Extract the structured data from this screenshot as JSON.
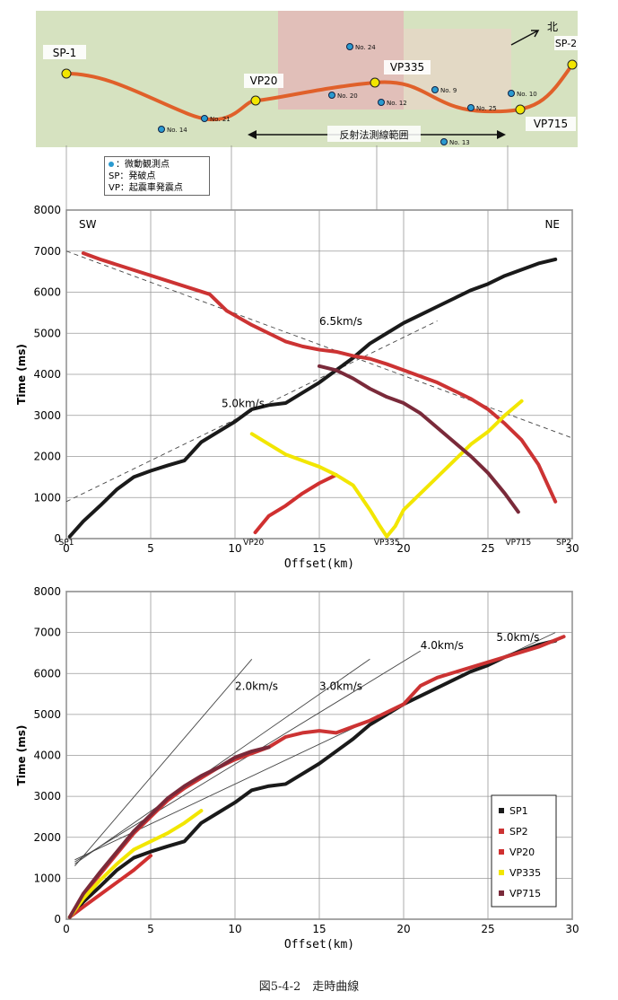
{
  "map": {
    "stations": {
      "sp1": "SP-1",
      "sp2": "SP-2",
      "vp20": "VP20",
      "vp335": "VP335",
      "vp715": "VP715"
    },
    "north_label": "北",
    "range_label": "反射法測線範囲",
    "obs_points": [
      "No. 24",
      "No. 9",
      "No. 10",
      "No. 20",
      "No. 12",
      "No. 25",
      "No. 21",
      "No. 14",
      "No. 13"
    ],
    "legend": {
      "microtremor": "：微動観測点",
      "shot": "SP：発破点",
      "vibro": "VP：起震車発震点"
    },
    "colors": {
      "route": "#e0602a",
      "station": "#f2e600",
      "obs": "#2a9ad0",
      "terrain": "#c9d8b0",
      "urban": "#d89aa0"
    }
  },
  "chart_data": [
    {
      "type": "line",
      "xlabel": "Offset(km)",
      "ylabel": "Time (ms)",
      "xlim": [
        0,
        30
      ],
      "ylim": [
        0,
        8000
      ],
      "xticks": [
        0,
        5,
        10,
        15,
        20,
        25,
        30
      ],
      "yticks": [
        0,
        1000,
        2000,
        3000,
        4000,
        5000,
        6000,
        7000,
        8000
      ],
      "grid": true,
      "corner_labels": {
        "left": "SW",
        "right": "NE"
      },
      "source_labels": [
        {
          "text": "SP1",
          "x": 0
        },
        {
          "text": "VP20",
          "x": 11.1
        },
        {
          "text": "VP335",
          "x": 19.0
        },
        {
          "text": "VP715",
          "x": 26.8
        },
        {
          "text": "SP2",
          "x": 29.5
        }
      ],
      "velocity_labels": [
        {
          "text": "6.5km/s",
          "x": 15,
          "y": 5200
        },
        {
          "text": "5.0km/s",
          "x": 9.2,
          "y": 3200
        }
      ],
      "ref_lines": [
        {
          "points": [
            [
              0,
              7000
            ],
            [
              30,
              2450
            ]
          ]
        },
        {
          "points": [
            [
              0,
              900
            ],
            [
              22,
              5300
            ]
          ]
        }
      ],
      "series": [
        {
          "name": "SP1",
          "color": "#1a1a1a",
          "points": [
            [
              0.2,
              50
            ],
            [
              1,
              420
            ],
            [
              2,
              800
            ],
            [
              3,
              1200
            ],
            [
              4,
              1500
            ],
            [
              5,
              1650
            ],
            [
              6,
              1780
            ],
            [
              7,
              1900
            ],
            [
              8,
              2350
            ],
            [
              9,
              2600
            ],
            [
              10,
              2850
            ],
            [
              11,
              3150
            ],
            [
              12,
              3250
            ],
            [
              13,
              3300
            ],
            [
              14,
              3550
            ],
            [
              15,
              3800
            ],
            [
              16,
              4100
            ],
            [
              17,
              4400
            ],
            [
              18,
              4750
            ],
            [
              19,
              5000
            ],
            [
              20,
              5250
            ],
            [
              21,
              5450
            ],
            [
              22,
              5650
            ],
            [
              23,
              5850
            ],
            [
              24,
              6050
            ],
            [
              25,
              6200
            ],
            [
              26,
              6400
            ],
            [
              27,
              6550
            ],
            [
              28,
              6700
            ],
            [
              29,
              6800
            ]
          ]
        },
        {
          "name": "SP2",
          "color": "#cc3333",
          "points": [
            [
              1,
              6950
            ],
            [
              2,
              6800
            ],
            [
              8.5,
              5950
            ],
            [
              9.5,
              5550
            ],
            [
              11,
              5200
            ],
            [
              12,
              5000
            ],
            [
              13,
              4800
            ],
            [
              14,
              4680
            ],
            [
              15,
              4600
            ],
            [
              16,
              4550
            ],
            [
              17,
              4450
            ],
            [
              18,
              4380
            ],
            [
              19,
              4250
            ],
            [
              20,
              4100
            ],
            [
              21,
              3950
            ],
            [
              22,
              3800
            ],
            [
              23,
              3600
            ],
            [
              24,
              3400
            ],
            [
              25,
              3150
            ],
            [
              26,
              2800
            ],
            [
              27,
              2400
            ],
            [
              28,
              1800
            ],
            [
              29,
              900
            ]
          ]
        },
        {
          "name": "VP20",
          "color": "#d03030",
          "points": [
            [
              11.2,
              150
            ],
            [
              11.5,
              300
            ],
            [
              12,
              550
            ],
            [
              13,
              800
            ],
            [
              14,
              1100
            ],
            [
              15,
              1350
            ],
            [
              16,
              1550
            ]
          ]
        },
        {
          "name": "VP335",
          "color": "#f2e600",
          "points": [
            [
              11,
              2550
            ],
            [
              12,
              2300
            ],
            [
              13,
              2050
            ],
            [
              14,
              1900
            ],
            [
              15,
              1750
            ],
            [
              16,
              1550
            ],
            [
              17,
              1300
            ],
            [
              18,
              700
            ],
            [
              18.6,
              300
            ],
            [
              19,
              50
            ],
            [
              19.5,
              300
            ],
            [
              20,
              700
            ],
            [
              21,
              1100
            ],
            [
              22,
              1500
            ],
            [
              23,
              1900
            ],
            [
              24,
              2300
            ],
            [
              25,
              2600
            ],
            [
              26,
              3000
            ],
            [
              27,
              3350
            ]
          ]
        },
        {
          "name": "VP715",
          "color": "#7a2a3a",
          "points": [
            [
              15,
              4200
            ],
            [
              16,
              4100
            ],
            [
              17,
              3900
            ],
            [
              18,
              3650
            ],
            [
              19,
              3450
            ],
            [
              20,
              3300
            ],
            [
              21,
              3050
            ],
            [
              22,
              2700
            ],
            [
              23,
              2350
            ],
            [
              24,
              2000
            ],
            [
              25,
              1600
            ],
            [
              26,
              1100
            ],
            [
              26.8,
              650
            ]
          ]
        }
      ]
    },
    {
      "type": "line",
      "xlabel": "Offset(km)",
      "ylabel": "Time (ms)",
      "xlim": [
        0,
        30
      ],
      "ylim": [
        0,
        8000
      ],
      "xticks": [
        0,
        5,
        10,
        15,
        20,
        25,
        30
      ],
      "yticks": [
        0,
        1000,
        2000,
        3000,
        4000,
        5000,
        6000,
        7000,
        8000
      ],
      "grid": true,
      "legend_position": "lower-right",
      "velocity_labels": [
        {
          "text": "2.0km/s",
          "x": 10,
          "y": 5600
        },
        {
          "text": "3.0km/s",
          "x": 15,
          "y": 5600
        },
        {
          "text": "4.0km/s",
          "x": 21,
          "y": 6600
        },
        {
          "text": "5.0km/s",
          "x": 25.5,
          "y": 6800
        }
      ],
      "ref_lines": [
        {
          "points": [
            [
              0.5,
              1300
            ],
            [
              11,
              6350
            ]
          ]
        },
        {
          "points": [
            [
              0.5,
              1350
            ],
            [
              18,
              6350
            ]
          ]
        },
        {
          "points": [
            [
              0.5,
              1400
            ],
            [
              21,
              6550
            ]
          ]
        },
        {
          "points": [
            [
              0.5,
              1450
            ],
            [
              29,
              7000
            ]
          ]
        }
      ],
      "series": [
        {
          "name": "SP1",
          "color": "#1a1a1a",
          "points": [
            [
              0.2,
              50
            ],
            [
              1,
              420
            ],
            [
              2,
              800
            ],
            [
              3,
              1200
            ],
            [
              4,
              1500
            ],
            [
              5,
              1650
            ],
            [
              6,
              1780
            ],
            [
              7,
              1900
            ],
            [
              8,
              2350
            ],
            [
              9,
              2600
            ],
            [
              10,
              2850
            ],
            [
              11,
              3150
            ],
            [
              12,
              3250
            ],
            [
              13,
              3300
            ],
            [
              14,
              3550
            ],
            [
              15,
              3800
            ],
            [
              16,
              4100
            ],
            [
              17,
              4400
            ],
            [
              18,
              4750
            ],
            [
              19,
              5000
            ],
            [
              20,
              5250
            ],
            [
              21,
              5450
            ],
            [
              22,
              5650
            ],
            [
              23,
              5850
            ],
            [
              24,
              6050
            ],
            [
              25,
              6200
            ],
            [
              26,
              6400
            ],
            [
              27,
              6550
            ],
            [
              28,
              6700
            ],
            [
              29,
              6800
            ]
          ]
        },
        {
          "name": "SP2",
          "color": "#cc3333",
          "points": [
            [
              0.2,
              50
            ],
            [
              1,
              600
            ],
            [
              2,
              1100
            ],
            [
              3,
              1600
            ],
            [
              4,
              2100
            ],
            [
              5,
              2500
            ],
            [
              6,
              2900
            ],
            [
              7,
              3200
            ],
            [
              8,
              3450
            ],
            [
              9,
              3700
            ],
            [
              10,
              3900
            ],
            [
              11,
              4050
            ],
            [
              12,
              4200
            ],
            [
              13,
              4450
            ],
            [
              14,
              4550
            ],
            [
              15,
              4600
            ],
            [
              16,
              4550
            ],
            [
              17,
              4700
            ],
            [
              18,
              4850
            ],
            [
              19,
              5050
            ],
            [
              20,
              5250
            ],
            [
              21,
              5700
            ],
            [
              22,
              5900
            ],
            [
              28,
              6650
            ],
            [
              29.5,
              6900
            ]
          ]
        },
        {
          "name": "VP20",
          "color": "#d03030",
          "points": [
            [
              0.2,
              50
            ],
            [
              1,
              300
            ],
            [
              2,
              600
            ],
            [
              3,
              900
            ],
            [
              4,
              1200
            ],
            [
              5,
              1550
            ]
          ]
        },
        {
          "name": "VP335",
          "color": "#f2e600",
          "points": [
            [
              0.2,
              50
            ],
            [
              1,
              500
            ],
            [
              2,
              950
            ],
            [
              3,
              1350
            ],
            [
              4,
              1700
            ],
            [
              5,
              1900
            ],
            [
              6,
              2100
            ],
            [
              7,
              2350
            ],
            [
              8,
              2650
            ]
          ]
        },
        {
          "name": "VP715",
          "color": "#7a2a3a",
          "points": [
            [
              0.2,
              50
            ],
            [
              1,
              620
            ],
            [
              2,
              1150
            ],
            [
              3,
              1650
            ],
            [
              4,
              2150
            ],
            [
              5,
              2550
            ],
            [
              6,
              2950
            ],
            [
              7,
              3250
            ],
            [
              8,
              3500
            ],
            [
              9,
              3700
            ],
            [
              10,
              3950
            ],
            [
              11,
              4100
            ],
            [
              12,
              4200
            ]
          ]
        }
      ]
    }
  ],
  "caption": "図5-4-2　走時曲線"
}
